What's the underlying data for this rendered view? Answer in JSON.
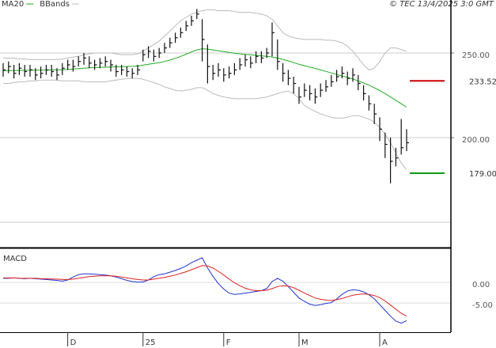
{
  "chart_data": [
    {
      "type": "ohlc",
      "credit": "© TEC 13/4/2025 3:0 GMT",
      "categories": [
        null,
        null,
        null,
        null,
        null,
        null,
        null,
        null,
        null,
        null,
        null,
        null,
        "D",
        null,
        null,
        null,
        null,
        null,
        null,
        null,
        null,
        null,
        null,
        null,
        null,
        null,
        "25",
        null,
        null,
        null,
        null,
        null,
        null,
        null,
        null,
        null,
        null,
        null,
        null,
        null,
        null,
        "F",
        null,
        null,
        null,
        null,
        null,
        null,
        null,
        null,
        null,
        null,
        null,
        null,
        null,
        "M",
        null,
        null,
        null,
        null,
        null,
        null,
        null,
        null,
        null,
        null,
        null,
        null,
        null,
        null,
        "A",
        null,
        null,
        null,
        null,
        null
      ],
      "high": [
        244,
        245,
        243,
        244,
        243,
        243,
        241,
        242,
        243,
        243,
        241,
        244,
        246,
        246,
        248,
        250,
        248,
        246,
        247,
        248,
        246,
        243,
        243,
        242,
        241,
        243,
        252,
        254,
        252,
        253,
        256,
        259,
        262,
        265,
        269,
        272,
        276,
        270,
        255,
        243,
        244,
        241,
        242,
        244,
        247,
        249,
        248,
        251,
        251,
        253,
        268,
        258,
        244,
        240,
        236,
        230,
        232,
        231,
        229,
        232,
        234,
        237,
        240,
        242,
        239,
        241,
        237,
        231,
        225,
        220,
        212,
        203,
        200,
        194,
        211,
        205
      ],
      "low": [
        236,
        238,
        235,
        237,
        236,
        236,
        234,
        235,
        237,
        236,
        234,
        237,
        240,
        239,
        242,
        243,
        241,
        240,
        241,
        242,
        239,
        236,
        237,
        236,
        235,
        237,
        245,
        247,
        245,
        247,
        250,
        253,
        256,
        259,
        263,
        266,
        270,
        245,
        232,
        234,
        236,
        233,
        235,
        237,
        240,
        242,
        241,
        244,
        244,
        247,
        248,
        240,
        233,
        231,
        226,
        220,
        224,
        222,
        220,
        224,
        227,
        230,
        233,
        235,
        231,
        233,
        228,
        222,
        216,
        208,
        198,
        188,
        173,
        183,
        190,
        192
      ],
      "close": [
        240,
        242,
        238,
        241,
        239,
        240,
        237,
        238,
        240,
        239,
        237,
        241,
        243,
        242,
        245,
        247,
        244,
        243,
        244,
        245,
        243,
        239,
        240,
        239,
        238,
        240,
        249,
        251,
        248,
        250,
        253,
        256,
        259,
        262,
        266,
        269,
        273,
        258,
        242,
        238,
        240,
        237,
        238,
        240,
        243,
        246,
        244,
        248,
        247,
        250,
        262,
        245,
        238,
        235,
        232,
        224,
        228,
        226,
        224,
        228,
        230,
        233,
        236,
        238,
        235,
        237,
        232,
        226,
        220,
        214,
        205,
        196,
        186,
        188,
        194,
        197
      ],
      "bar_color": "#111111",
      "series": [
        {
          "name": "MA20",
          "color": "#22aa22",
          "values": [
            239.5,
            239.6,
            239.6,
            239.7,
            239.7,
            239.8,
            239.8,
            239.9,
            239.9,
            240,
            240,
            240.1,
            240.3,
            240.5,
            240.8,
            241,
            241.2,
            241.4,
            241.5,
            241.6,
            241.7,
            241.8,
            241.9,
            242,
            242.1,
            242.3,
            242.8,
            243.3,
            243.8,
            244.3,
            245,
            245.8,
            246.8,
            248,
            249.3,
            250.6,
            251.8,
            252.5,
            252.3,
            251.8,
            251.3,
            250.8,
            250.3,
            249.9,
            249.5,
            249.2,
            248.9,
            248.6,
            248.3,
            248,
            247.6,
            247,
            246.2,
            245.3,
            244.3,
            243.3,
            242.5,
            241.7,
            240.9,
            240,
            239.1,
            238.2,
            237.3,
            236.4,
            235.6,
            234.6,
            233.5,
            232.3,
            231,
            229.5,
            227.8,
            226,
            224,
            222,
            220,
            218
          ]
        },
        {
          "name": "BBands",
          "color": "#bbbbbb",
          "upper": [
            247,
            247,
            247,
            246.5,
            246.5,
            246,
            246,
            246,
            246,
            246,
            246,
            246.5,
            247,
            247.5,
            248,
            249,
            249.5,
            250,
            250,
            250,
            250,
            249.5,
            249,
            249,
            249,
            249.5,
            251,
            253,
            255,
            257,
            260,
            263,
            266,
            269,
            271,
            273,
            274,
            275,
            275.5,
            275.5,
            275,
            275,
            275,
            274.5,
            274,
            274,
            274,
            273.5,
            273,
            272,
            270,
            266,
            262,
            260,
            259,
            258.5,
            258,
            258,
            258,
            258,
            257.5,
            257.5,
            257,
            256,
            254,
            251,
            247,
            243,
            240,
            241,
            245,
            250,
            253,
            253,
            252,
            251
          ],
          "lower": [
            232,
            232,
            232.5,
            233,
            233,
            233.5,
            233.5,
            234,
            234,
            234,
            234,
            233.5,
            233.5,
            233.5,
            233.5,
            233,
            233,
            233,
            233,
            233,
            233.5,
            234,
            234.5,
            235,
            235,
            235,
            234.5,
            233.5,
            232.5,
            231.5,
            230,
            229,
            228,
            227.5,
            228,
            228.5,
            229.5,
            229.5,
            228,
            226,
            225,
            224,
            223.5,
            223,
            223,
            223,
            223,
            223,
            223.5,
            224,
            225,
            226,
            227,
            227.5,
            226,
            223,
            219,
            217,
            215.5,
            214,
            213,
            212,
            211.5,
            211.5,
            212,
            213,
            213,
            212,
            211,
            209,
            206,
            202,
            197,
            191,
            185,
            181
          ]
        }
      ],
      "levels": [
        {
          "value": 233.52,
          "label": "233.52",
          "color": "#cc0000"
        },
        {
          "value": 179,
          "label": "179.00",
          "color": "#119911"
        }
      ],
      "ylim": [
        135.05,
        281.3
      ],
      "yticks": [
        {
          "value": 250,
          "label": "250.00"
        },
        {
          "value": 200,
          "label": "200.00"
        }
      ],
      "ygrid": [
        150,
        200,
        250
      ],
      "grid_color": "#cccccc"
    },
    {
      "type": "macd",
      "title": "MACD",
      "series": [
        {
          "color": "#2233cc",
          "values": [
            1.0,
            1,
            1.1,
            1,
            0.9,
            1,
            0.9,
            0.8,
            0.7,
            0.6,
            0.5,
            0.3,
            0.6,
            1.3,
            1.9,
            2.1,
            2.1,
            2,
            1.9,
            1.8,
            1.6,
            1.3,
            0.9,
            0.5,
            0.2,
            0.1,
            0.1,
            0.6,
            1.4,
            1.9,
            2.1,
            2.5,
            2.9,
            3.4,
            4.0,
            4.8,
            5.4,
            6.0,
            3.5,
            1.5,
            -0.3,
            -1.6,
            -2.6,
            -2.9,
            -2.8,
            -2.6,
            -2.4,
            -2.2,
            -2.0,
            -1.5,
            0.2,
            1.0,
            0.3,
            -1.0,
            -2.4,
            -3.8,
            -4.6,
            -5.3,
            -5.6,
            -5.4,
            -5.1,
            -4.9,
            -4.0,
            -2.9,
            -2.1,
            -1.8,
            -1.9,
            -2.3,
            -3.0,
            -4.0,
            -5.4,
            -6.8,
            -8.2,
            -9.4,
            -9.9,
            -9.3
          ]
        },
        {
          "color": "#dd2222",
          "values": [
            1.1,
            1.1,
            1.1,
            1.0,
            1.0,
            1.0,
            1.0,
            0.9,
            0.9,
            0.8,
            0.8,
            0.7,
            0.7,
            0.8,
            1.0,
            1.2,
            1.4,
            1.5,
            1.6,
            1.6,
            1.6,
            1.5,
            1.3,
            1.1,
            0.9,
            0.7,
            0.6,
            0.6,
            0.8,
            1.0,
            1.2,
            1.5,
            1.8,
            2.2,
            2.6,
            3.1,
            3.6,
            4.1,
            4.0,
            3.5,
            2.7,
            1.8,
            0.8,
            -0.1,
            -0.8,
            -1.4,
            -1.8,
            -2.0,
            -2.0,
            -1.9,
            -1.5,
            -1.0,
            -0.8,
            -0.9,
            -1.3,
            -1.9,
            -2.6,
            -3.2,
            -3.8,
            -4.1,
            -4.3,
            -4.4,
            -4.2,
            -3.9,
            -3.5,
            -3.1,
            -2.9,
            -2.8,
            -2.9,
            -3.2,
            -3.7,
            -4.5,
            -5.5,
            -6.5,
            -7.5,
            -8.2
          ]
        }
      ],
      "ylim": [
        -12.1,
        7.9
      ],
      "yticks": [
        {
          "value": 0,
          "label": "0.00"
        },
        {
          "value": -5,
          "label": "-5.00"
        }
      ],
      "grid_color": "#dddddd"
    }
  ]
}
